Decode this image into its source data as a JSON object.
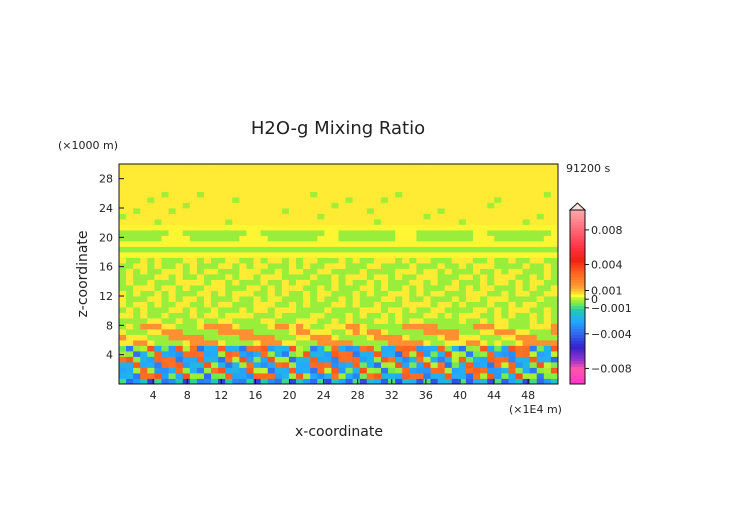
{
  "chart_data": {
    "type": "heatmap",
    "title": "H2O-g Mixing Ratio",
    "xlabel": "x-coordinate",
    "ylabel": "z-coordinate",
    "x_unit": "(×1E4 m)",
    "y_unit": "(×1000 m)",
    "time_label": "91200 s",
    "xlim": [
      0,
      51.5
    ],
    "ylim": [
      0,
      30
    ],
    "x_ticks": [
      4,
      8,
      12,
      16,
      20,
      24,
      28,
      32,
      36,
      40,
      44,
      48
    ],
    "y_ticks": [
      4,
      8,
      12,
      16,
      20,
      24,
      28
    ],
    "colorbar": {
      "range": [
        -0.0098,
        0.0103
      ],
      "tick_values": [
        0.008,
        0.004,
        0.001,
        0,
        -0.001,
        -0.004,
        -0.008
      ],
      "tick_labels": [
        "0.008",
        "0.004",
        "0.001",
        "0",
        "−0.001",
        "−0.004",
        "−0.008"
      ],
      "overflow_arrow": "top"
    },
    "color_stops": [
      {
        "v": -0.0098,
        "c": "#ff33cc"
      },
      {
        "v": -0.008,
        "c": "#ff55aa"
      },
      {
        "v": -0.007,
        "c": "#9933cc"
      },
      {
        "v": -0.0055,
        "c": "#3322cc"
      },
      {
        "v": -0.004,
        "c": "#3366ee"
      },
      {
        "v": -0.0025,
        "c": "#22aaff"
      },
      {
        "v": -0.0012,
        "c": "#22ccaa"
      },
      {
        "v": -0.0004,
        "c": "#88ee44"
      },
      {
        "v": 0,
        "c": "#aaee33"
      },
      {
        "v": 0.0004,
        "c": "#ffff33"
      },
      {
        "v": 0.0009,
        "c": "#ffcc33"
      },
      {
        "v": 0.0015,
        "c": "#ff9933"
      },
      {
        "v": 0.003,
        "c": "#ff6622"
      },
      {
        "v": 0.0045,
        "c": "#ee2211"
      },
      {
        "v": 0.006,
        "c": "#ff3344"
      },
      {
        "v": 0.008,
        "c": "#ff6677"
      },
      {
        "v": 0.0103,
        "c": "#ffaaaa"
      }
    ],
    "field_description": "yellow/green banded upper layers; orange and cyan/blue turbulent eddies below z≈7"
  }
}
